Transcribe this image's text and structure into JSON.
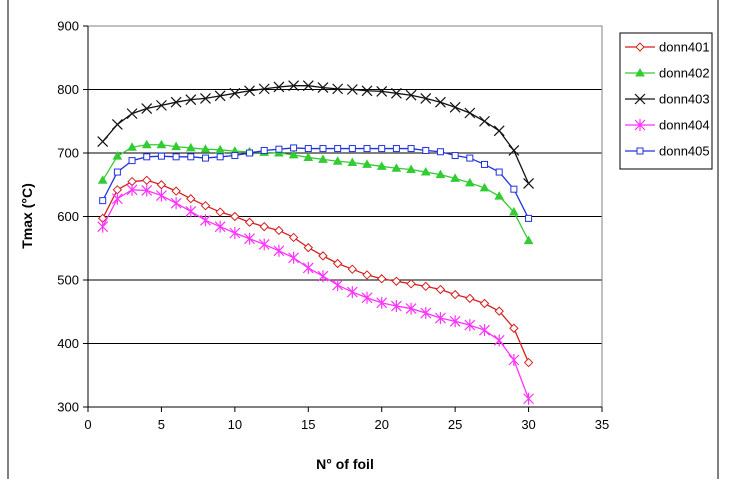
{
  "chart_data": {
    "type": "line",
    "title": "",
    "xlabel": "N° of foil",
    "ylabel": "Tmax (°C)",
    "xlim": [
      0,
      35
    ],
    "ylim": [
      300,
      900
    ],
    "xticks": [
      0,
      5,
      10,
      15,
      20,
      25,
      30,
      35
    ],
    "yticks": [
      300,
      400,
      500,
      600,
      700,
      800,
      900
    ],
    "grid": "horizontal",
    "legend_position": "right",
    "series": [
      {
        "name": "donn401",
        "color": "#d42020",
        "marker": "diamond",
        "x": [
          1,
          2,
          3,
          4,
          5,
          6,
          7,
          8,
          9,
          10,
          11,
          12,
          13,
          14,
          15,
          16,
          17,
          18,
          19,
          20,
          21,
          22,
          23,
          24,
          25,
          26,
          27,
          28,
          29,
          30
        ],
        "values": [
          597,
          642,
          655,
          657,
          650,
          640,
          628,
          617,
          607,
          600,
          591,
          584,
          578,
          567,
          551,
          538,
          526,
          517,
          508,
          502,
          498,
          494,
          490,
          485,
          477,
          471,
          463,
          451,
          424,
          370
        ]
      },
      {
        "name": "donn402",
        "color": "#33cc33",
        "marker": "triangle",
        "x": [
          1,
          2,
          3,
          4,
          5,
          6,
          7,
          8,
          9,
          10,
          11,
          12,
          13,
          14,
          15,
          16,
          17,
          18,
          19,
          20,
          21,
          22,
          23,
          24,
          25,
          26,
          27,
          28,
          29,
          30
        ],
        "values": [
          657,
          695,
          709,
          713,
          713,
          710,
          708,
          706,
          705,
          703,
          702,
          701,
          700,
          697,
          693,
          690,
          687,
          685,
          682,
          679,
          676,
          674,
          670,
          666,
          660,
          653,
          645,
          632,
          607,
          562
        ]
      },
      {
        "name": "donn403",
        "color": "#111111",
        "marker": "x",
        "x": [
          1,
          2,
          3,
          4,
          5,
          6,
          7,
          8,
          9,
          10,
          11,
          12,
          13,
          14,
          15,
          16,
          17,
          18,
          19,
          20,
          21,
          22,
          23,
          24,
          25,
          26,
          27,
          28,
          29,
          30
        ],
        "values": [
          718,
          745,
          762,
          770,
          775,
          780,
          784,
          786,
          790,
          794,
          798,
          801,
          804,
          806,
          806,
          803,
          801,
          800,
          798,
          797,
          794,
          791,
          786,
          780,
          772,
          763,
          750,
          735,
          704,
          652
        ]
      },
      {
        "name": "donn404",
        "color": "#ff33ff",
        "marker": "asterisk",
        "x": [
          1,
          2,
          3,
          4,
          5,
          6,
          7,
          8,
          9,
          10,
          11,
          12,
          13,
          14,
          15,
          16,
          17,
          18,
          19,
          20,
          21,
          22,
          23,
          24,
          25,
          26,
          27,
          28,
          29,
          30
        ],
        "values": [
          584,
          628,
          642,
          641,
          633,
          621,
          608,
          594,
          584,
          574,
          565,
          556,
          546,
          535,
          519,
          506,
          492,
          481,
          472,
          464,
          459,
          455,
          448,
          440,
          435,
          429,
          421,
          405,
          374,
          313
        ]
      },
      {
        "name": "donn405",
        "color": "#2233dd",
        "marker": "square",
        "x": [
          1,
          2,
          3,
          4,
          5,
          6,
          7,
          8,
          9,
          10,
          11,
          12,
          13,
          14,
          15,
          16,
          17,
          18,
          19,
          20,
          21,
          22,
          23,
          24,
          25,
          26,
          27,
          28,
          29,
          30
        ],
        "values": [
          625,
          670,
          688,
          694,
          695,
          694,
          694,
          692,
          694,
          696,
          700,
          704,
          706,
          708,
          707,
          707,
          707,
          707,
          707,
          707,
          707,
          707,
          704,
          702,
          696,
          692,
          682,
          670,
          643,
          597
        ]
      }
    ]
  }
}
